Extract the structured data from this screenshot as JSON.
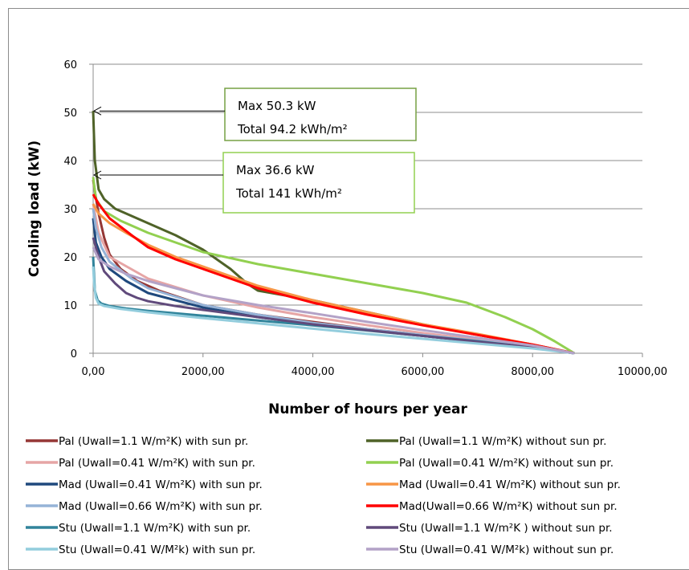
{
  "chart_data": {
    "type": "line",
    "title": "",
    "xlabel": "Number of hours per year",
    "ylabel": "Cooling load (kW)",
    "xlim": [
      0,
      10000
    ],
    "ylim": [
      0,
      60
    ],
    "x_ticks": [
      "0,00",
      "2000,00",
      "4000,00",
      "6000,00",
      "8000,00",
      "10000,00"
    ],
    "y_ticks": [
      "0",
      "10",
      "20",
      "30",
      "40",
      "50",
      "60"
    ],
    "grid": "horizontal",
    "legend_position": "bottom",
    "annotations": [
      {
        "line1": "Max 50.3  kW",
        "line2": "Total   94.2 kWh/m²",
        "arrow_to": [
          0,
          50.3
        ],
        "border": "#77a043"
      },
      {
        "line1": "Max 36.6  kW",
        "line2": "Total   141  kWh/m²",
        "arrow_to": [
          0,
          37
        ],
        "border": "#92d050"
      }
    ],
    "series": [
      {
        "name": "Pal (Uwall=1.1 W/m²K) with sun pr.",
        "color": "#953735",
        "x": [
          0,
          40,
          100,
          200,
          300,
          500,
          800,
          1200,
          2000,
          3000,
          4000,
          5000,
          6000,
          7000,
          8000,
          8760
        ],
        "y": [
          36,
          33,
          29,
          24,
          20.5,
          17.5,
          15,
          13,
          10,
          8,
          6.5,
          5,
          3.8,
          2.5,
          1.2,
          0
        ]
      },
      {
        "name": "Pal (Uwall=1.1 W/m²K) without sun pr.",
        "color": "#4f6228",
        "x": [
          0,
          30,
          100,
          200,
          400,
          700,
          1000,
          1500,
          2000,
          2500,
          2800,
          3000,
          3500,
          4000,
          5000,
          6000,
          7000,
          8000,
          8760
        ],
        "y": [
          50.3,
          40,
          34,
          32,
          30,
          28.5,
          27,
          24.5,
          21.5,
          17.5,
          14.5,
          13,
          12,
          11,
          8.5,
          6,
          3.8,
          1.8,
          0
        ]
      },
      {
        "name": "Pal (Uwall=0.41 W/m²K) with sun pr.",
        "color": "#e6a5a5",
        "x": [
          0,
          100,
          300,
          1000,
          2000,
          3000,
          4000,
          5000,
          6000,
          7000,
          8000,
          8760
        ],
        "y": [
          31,
          25,
          20,
          15.5,
          12,
          9.5,
          7.5,
          5.8,
          4.2,
          2.8,
          1.3,
          0
        ]
      },
      {
        "name": "Pal (Uwall=0.41 W/m²K) without sun pr.",
        "color": "#92d050",
        "x": [
          0,
          50,
          200,
          500,
          1000,
          2000,
          3000,
          4000,
          5000,
          6000,
          6800,
          7500,
          8000,
          8400,
          8760
        ],
        "y": [
          36.6,
          32,
          29.5,
          27.5,
          25,
          21,
          18.5,
          16.5,
          14.5,
          12.5,
          10.5,
          7.5,
          5,
          2.5,
          0
        ]
      },
      {
        "name": "Mad (Uwall=0.41 W/m²K) with sun pr.",
        "color": "#1f497d",
        "x": [
          0,
          50,
          150,
          300,
          600,
          1000,
          2000,
          3000,
          4000,
          5000,
          6000,
          7000,
          8000,
          8760
        ],
        "y": [
          28,
          23,
          20,
          17.5,
          15,
          12.5,
          9.5,
          7.5,
          6,
          4.8,
          3.6,
          2.4,
          1.2,
          0
        ]
      },
      {
        "name": "Mad (Uwall=0.41 W/m²K) without sun pr.",
        "color": "#f79646",
        "x": [
          0,
          100,
          300,
          600,
          1000,
          1500,
          2000,
          3000,
          4000,
          5000,
          6000,
          7000,
          8000,
          8760
        ],
        "y": [
          31,
          29,
          27,
          25,
          22.5,
          20,
          18,
          14,
          11,
          8.5,
          6,
          4,
          1.8,
          0
        ]
      },
      {
        "name": "Mad (Uwall=0.66 W/m²K) with sun pr.",
        "color": "#95b3d7",
        "x": [
          0,
          50,
          150,
          300,
          700,
          1000,
          2000,
          3000,
          4000,
          5000,
          6000,
          7000,
          8000,
          8760
        ],
        "y": [
          30,
          26,
          22,
          19,
          15.5,
          13.5,
          10,
          8,
          6.3,
          5,
          3.8,
          2.6,
          1.3,
          0
        ]
      },
      {
        "name": "Mad(Uwall=0.66 W/m²K) without sun pr.",
        "color": "#ff0000",
        "x": [
          0,
          100,
          300,
          700,
          1000,
          1500,
          2000,
          3000,
          4000,
          5000,
          6000,
          7000,
          8000,
          8760
        ],
        "y": [
          33,
          31,
          28,
          24.5,
          22,
          19.5,
          17.5,
          13.5,
          10.5,
          8,
          5.8,
          3.8,
          1.8,
          0
        ]
      },
      {
        "name": "Stu (Uwall=1.1 W/m²K) with sun pr.",
        "color": "#31849b",
        "x": [
          0,
          30,
          80,
          150,
          300,
          600,
          1000,
          2000,
          3000,
          4000,
          5000,
          6000,
          7000,
          8000,
          8760
        ],
        "y": [
          20,
          13,
          11,
          10.3,
          9.8,
          9.3,
          8.8,
          7.8,
          6.8,
          5.8,
          4.7,
          3.6,
          2.5,
          1.2,
          0
        ]
      },
      {
        "name": "Stu (Uwall=1.1 W/m²K ) without sun pr.",
        "color": "#604a7b",
        "x": [
          0,
          100,
          200,
          400,
          600,
          800,
          1000,
          1500,
          2000,
          3000,
          4000,
          5000,
          6000,
          7000,
          8000,
          8760
        ],
        "y": [
          24,
          20,
          17,
          14.5,
          12.5,
          11.5,
          10.8,
          9.8,
          9,
          7.5,
          6,
          4.8,
          3.6,
          2.4,
          1.2,
          0
        ]
      },
      {
        "name": "Stu (Uwall=0.41 W/M²k) with sun pr.",
        "color": "#93cddd",
        "x": [
          0,
          20,
          50,
          100,
          200,
          500,
          1000,
          2000,
          3000,
          4000,
          5000,
          6000,
          7000,
          8000,
          8760
        ],
        "y": [
          18,
          14,
          11.5,
          10.3,
          9.8,
          9.2,
          8.5,
          7.3,
          6.2,
          5.1,
          4,
          3,
          2,
          1,
          0
        ]
      },
      {
        "name": "Stu (Uwall=0.41 W/M²k) without sun pr.",
        "color": "#b3a2c7",
        "x": [
          0,
          100,
          300,
          600,
          1000,
          2000,
          3000,
          4000,
          5000,
          6000,
          7000,
          8000,
          8760
        ],
        "y": [
          22,
          19.5,
          18,
          16.5,
          15,
          12,
          10,
          8.3,
          6.5,
          4.8,
          3.2,
          1.6,
          0
        ]
      }
    ]
  }
}
